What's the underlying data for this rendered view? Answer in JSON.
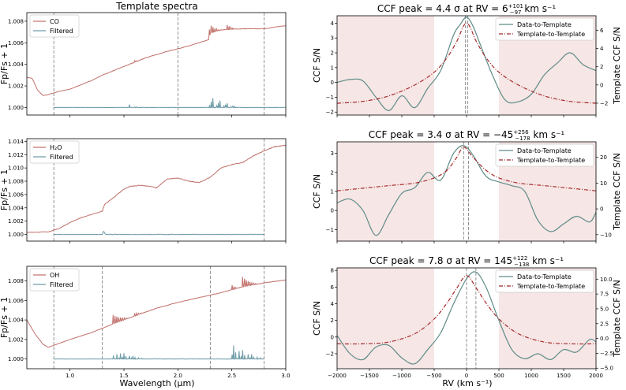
{
  "left_column_title": "Template spectra",
  "left_xlabel": "Wavelength (μm)",
  "right_xlabel": "RV (km s⁻¹)",
  "colors": {
    "template": "#c0706a",
    "filtered": "#6b9aa6",
    "data_ccf": "#5f8c86",
    "temp_ccf": "#a52a2a",
    "shade": "#f6e6e6",
    "vline": "#777777"
  },
  "chart_data": [
    {
      "type": "line",
      "panel": "spectrum-co",
      "ylabel": "Fp/Fs + 1",
      "xlim": [
        0.6,
        3.0
      ],
      "ylim": [
        0.9993,
        1.0088
      ],
      "x_ticks": [
        "1.0",
        "1.5",
        "2.0",
        "2.5",
        "3.0"
      ],
      "y_ticks": [
        "1.000",
        "1.002",
        "1.004",
        "1.006",
        "1.008"
      ],
      "vlines": [
        0.85,
        2.0,
        2.8
      ],
      "series": [
        {
          "name": "CO",
          "points": [
            [
              0.6,
              1.0028
            ],
            [
              0.65,
              1.0027
            ],
            [
              0.7,
              1.0016
            ],
            [
              0.75,
              1.0011
            ],
            [
              0.8,
              1.0012
            ],
            [
              0.9,
              1.0015
            ],
            [
              1.0,
              1.0017
            ],
            [
              1.1,
              1.0021
            ],
            [
              1.2,
              1.0025
            ],
            [
              1.3,
              1.003
            ],
            [
              1.5,
              1.0038
            ],
            [
              1.7,
              1.0046
            ],
            [
              1.9,
              1.0052
            ],
            [
              2.1,
              1.0057
            ],
            [
              2.29,
              1.0063
            ],
            [
              2.3,
              1.0069
            ],
            [
              2.4,
              1.0072
            ],
            [
              2.6,
              1.0073
            ],
            [
              2.8,
              1.0073
            ],
            [
              3.0,
              1.0076
            ]
          ],
          "bands": [
            [
              1.55,
              1.63,
              0.0004
            ],
            [
              2.29,
              2.55,
              0.0013
            ]
          ]
        },
        {
          "name": "Filtered",
          "points": [
            [
              0.85,
              1.0
            ],
            [
              3.0,
              1.0
            ]
          ],
          "bands": [
            [
              1.55,
              1.63,
              0.0004
            ],
            [
              2.29,
              2.55,
              0.0013
            ]
          ]
        }
      ]
    },
    {
      "type": "line",
      "panel": "spectrum-h2o",
      "ylabel": "Fp/Fs + 1",
      "xlim": [
        0.6,
        3.0
      ],
      "ylim": [
        0.999,
        1.0144
      ],
      "x_ticks": [
        "1.0",
        "1.5",
        "2.0",
        "2.5",
        "3.0"
      ],
      "y_ticks": [
        "1.000",
        "1.002",
        "1.004",
        "1.006",
        "1.008",
        "1.010",
        "1.012",
        "1.014"
      ],
      "vlines": [
        0.85,
        2.8
      ],
      "series": [
        {
          "name": "H₂O",
          "points": [
            [
              0.6,
              1.0003
            ],
            [
              0.8,
              1.0004
            ],
            [
              0.9,
              1.0009
            ],
            [
              1.0,
              1.0018
            ],
            [
              1.1,
              1.0025
            ],
            [
              1.2,
              1.003
            ],
            [
              1.3,
              1.0035
            ],
            [
              1.32,
              1.0045
            ],
            [
              1.4,
              1.0055
            ],
            [
              1.5,
              1.0068
            ],
            [
              1.55,
              1.0072
            ],
            [
              1.65,
              1.0074
            ],
            [
              1.75,
              1.0072
            ],
            [
              1.8,
              1.007
            ],
            [
              1.9,
              1.0083
            ],
            [
              2.0,
              1.0085
            ],
            [
              2.1,
              1.008
            ],
            [
              2.2,
              1.0078
            ],
            [
              2.3,
              1.0086
            ],
            [
              2.4,
              1.01
            ],
            [
              2.5,
              1.0105
            ],
            [
              2.6,
              1.0108
            ],
            [
              2.7,
              1.0118
            ],
            [
              2.8,
              1.0126
            ],
            [
              2.9,
              1.0132
            ],
            [
              3.0,
              1.0134
            ]
          ],
          "bands": []
        },
        {
          "name": "Filtered",
          "points": [
            [
              0.85,
              1.0
            ],
            [
              1.3,
              1.0
            ],
            [
              1.31,
              1.0005
            ],
            [
              1.33,
              1.0
            ],
            [
              2.8,
              1.0
            ]
          ],
          "bands": []
        }
      ]
    },
    {
      "type": "line",
      "panel": "spectrum-oh",
      "ylabel": "Fp/Fs + 1",
      "xlim": [
        0.6,
        3.0
      ],
      "ylim": [
        0.999,
        1.0095
      ],
      "x_ticks": [
        "1.0",
        "1.5",
        "2.0",
        "2.5",
        "3.0"
      ],
      "y_ticks": [
        "1.000",
        "1.002",
        "1.004",
        "1.006",
        "1.008"
      ],
      "vlines": [
        0.85,
        1.3,
        2.3,
        2.8
      ],
      "series": [
        {
          "name": "OH",
          "points": [
            [
              0.6,
              1.004
            ],
            [
              0.68,
              1.0025
            ],
            [
              0.75,
              1.0015
            ],
            [
              0.8,
              1.0012
            ],
            [
              0.9,
              1.0016
            ],
            [
              1.0,
              1.002
            ],
            [
              1.2,
              1.0027
            ],
            [
              1.4,
              1.0036
            ],
            [
              1.6,
              1.0044
            ],
            [
              1.8,
              1.0052
            ],
            [
              2.0,
              1.0058
            ],
            [
              2.2,
              1.0063
            ],
            [
              2.4,
              1.0068
            ],
            [
              2.6,
              1.0074
            ],
            [
              2.8,
              1.0078
            ],
            [
              3.0,
              1.0081
            ]
          ],
          "bands": [
            [
              1.4,
              1.7,
              0.0009
            ],
            [
              2.5,
              2.8,
              0.0015
            ]
          ]
        },
        {
          "name": "Filtered",
          "points": [
            [
              0.85,
              1.0
            ],
            [
              2.8,
              1.0
            ]
          ],
          "bands": [
            [
              1.4,
              1.7,
              0.0009
            ],
            [
              2.5,
              2.8,
              0.0015
            ]
          ]
        }
      ]
    },
    {
      "type": "line",
      "panel": "ccf-co",
      "title": "CCF peak = 4.4 σ at RV = 6",
      "title_sup": "+101",
      "title_sub": "−97",
      "title_unit": " km s⁻¹",
      "ylabel": "CCF S/N",
      "ylabel_right": "Template CCF S/N",
      "xlim": [
        -2000,
        2000
      ],
      "ylim": [
        -2.2,
        4.5
      ],
      "ylim_right": [
        -3.3,
        7.6
      ],
      "y_ticks": [
        -2,
        -1,
        0,
        1,
        2,
        3,
        4
      ],
      "y_ticks_right": [
        -2,
        0,
        2,
        4,
        6
      ],
      "x_ticks": [
        -2000,
        -1500,
        -1000,
        -500,
        0,
        500,
        1000,
        1500,
        2000
      ],
      "shade": [
        [
          -2000,
          -500
        ],
        [
          500,
          2000
        ]
      ],
      "vlines": [
        -20,
        20
      ],
      "series": [
        {
          "name": "Data-to-Template",
          "axis": "left",
          "x": [
            -2000,
            -1800,
            -1600,
            -1400,
            -1200,
            -1000,
            -800,
            -600,
            -400,
            -200,
            -100,
            0,
            100,
            200,
            400,
            600,
            800,
            1000,
            1200,
            1400,
            1600,
            1800,
            2000
          ],
          "y": [
            0.0,
            0.2,
            0.1,
            -1.0,
            -1.9,
            -0.9,
            -1.7,
            -0.4,
            0.8,
            3.2,
            3.9,
            4.4,
            3.8,
            2.7,
            0.5,
            -1.2,
            -1.3,
            -0.8,
            0.5,
            1.3,
            2.0,
            1.2,
            0.8
          ]
        },
        {
          "name": "Template-to-Template",
          "axis": "right",
          "x": [
            -2000,
            -1600,
            -1200,
            -800,
            -500,
            -300,
            -150,
            0,
            150,
            300,
            500,
            800,
            1200,
            1600,
            2000
          ],
          "y": [
            -2.0,
            -1.8,
            -1.2,
            0.0,
            1.4,
            3.0,
            4.8,
            6.8,
            4.8,
            3.0,
            1.4,
            0.0,
            -1.2,
            -1.8,
            -2.0
          ]
        }
      ]
    },
    {
      "type": "line",
      "panel": "ccf-h2o",
      "title": "CCF peak = 3.4 σ at RV = −45",
      "title_sup": "+256",
      "title_sub": "−178",
      "title_unit": " km s⁻¹",
      "ylabel": "CCF S/N",
      "ylabel_right": "Template CCF S/N",
      "xlim": [
        -2000,
        2000
      ],
      "ylim": [
        -1.6,
        3.6
      ],
      "ylim_right": [
        -12.5,
        26
      ],
      "y_ticks": [
        -1,
        0,
        1,
        2,
        3
      ],
      "y_ticks_right": [
        -10,
        0,
        10,
        20
      ],
      "x_ticks": [
        -2000,
        -1500,
        -1000,
        -500,
        0,
        500,
        1000,
        1500,
        2000
      ],
      "shade": [
        [
          -2000,
          -500
        ],
        [
          500,
          2000
        ]
      ],
      "vlines": [
        -45,
        30
      ],
      "series": [
        {
          "name": "Data-to-Template",
          "axis": "left",
          "x": [
            -2000,
            -1800,
            -1600,
            -1400,
            -1200,
            -1000,
            -800,
            -600,
            -400,
            -200,
            -45,
            100,
            300,
            500,
            700,
            900,
            1100,
            1300,
            1500,
            1700,
            1900,
            2000
          ],
          "y": [
            0.4,
            0.6,
            0.0,
            -1.3,
            -0.2,
            0.9,
            1.2,
            2.0,
            1.6,
            3.0,
            3.4,
            2.9,
            1.8,
            1.5,
            1.3,
            1.0,
            -0.5,
            -1.1,
            -0.7,
            -0.3,
            -0.6,
            -0.1
          ]
        },
        {
          "name": "Template-to-Template",
          "axis": "right",
          "x": [
            -2000,
            -1600,
            -1200,
            -800,
            -500,
            -300,
            -150,
            -45,
            100,
            300,
            500,
            800,
            1200,
            1600,
            2000
          ],
          "y": [
            7,
            8,
            9,
            10,
            12,
            15,
            20,
            24,
            20,
            15,
            12,
            10,
            9,
            8,
            7
          ]
        }
      ]
    },
    {
      "type": "line",
      "panel": "ccf-oh",
      "title": "CCF peak = 7.8 σ at RV = 145",
      "title_sup": "+122",
      "title_sub": "−138",
      "title_unit": " km s⁻¹",
      "ylabel": "CCF S/N",
      "ylabel_right": "Template CCF S/N",
      "xlim": [
        -2000,
        2000
      ],
      "ylim": [
        -3.8,
        8.3
      ],
      "ylim_right": [
        -5.1,
        11.9
      ],
      "y_ticks": [
        -2,
        0,
        2,
        4,
        6,
        8
      ],
      "y_ticks_right": [
        -5.0,
        -2.5,
        0.0,
        2.5,
        5.0,
        7.5,
        10.0
      ],
      "x_ticks": [
        -2000,
        -1500,
        -1000,
        -500,
        0,
        500,
        1000,
        1500,
        2000
      ],
      "shade": [
        [
          -2000,
          -500
        ],
        [
          500,
          2000
        ]
      ],
      "vlines": [
        0,
        145
      ],
      "series": [
        {
          "name": "Data-to-Template",
          "axis": "left",
          "x": [
            -2000,
            -1800,
            -1600,
            -1400,
            -1200,
            -1000,
            -800,
            -600,
            -400,
            -200,
            0,
            145,
            300,
            500,
            700,
            900,
            1100,
            1300,
            1500,
            1700,
            1900,
            2000
          ],
          "y": [
            0.2,
            -2.0,
            -2.7,
            -1.2,
            -1.0,
            -2.5,
            -3.2,
            -1.5,
            0.5,
            4.0,
            7.0,
            7.8,
            6.0,
            2.0,
            -1.5,
            -2.6,
            -2.0,
            -2.7,
            -1.5,
            -1.8,
            -0.3,
            -0.6
          ]
        },
        {
          "name": "Template-to-Template",
          "axis": "right",
          "x": [
            -2000,
            -1600,
            -1200,
            -800,
            -500,
            -300,
            -150,
            0,
            150,
            300,
            500,
            800,
            1200,
            1600,
            2000
          ],
          "y": [
            -0.9,
            -0.9,
            -0.6,
            0.8,
            3.3,
            6.0,
            8.5,
            10.6,
            8.5,
            6.0,
            3.3,
            0.8,
            -0.6,
            -0.9,
            -0.9
          ]
        }
      ]
    }
  ]
}
